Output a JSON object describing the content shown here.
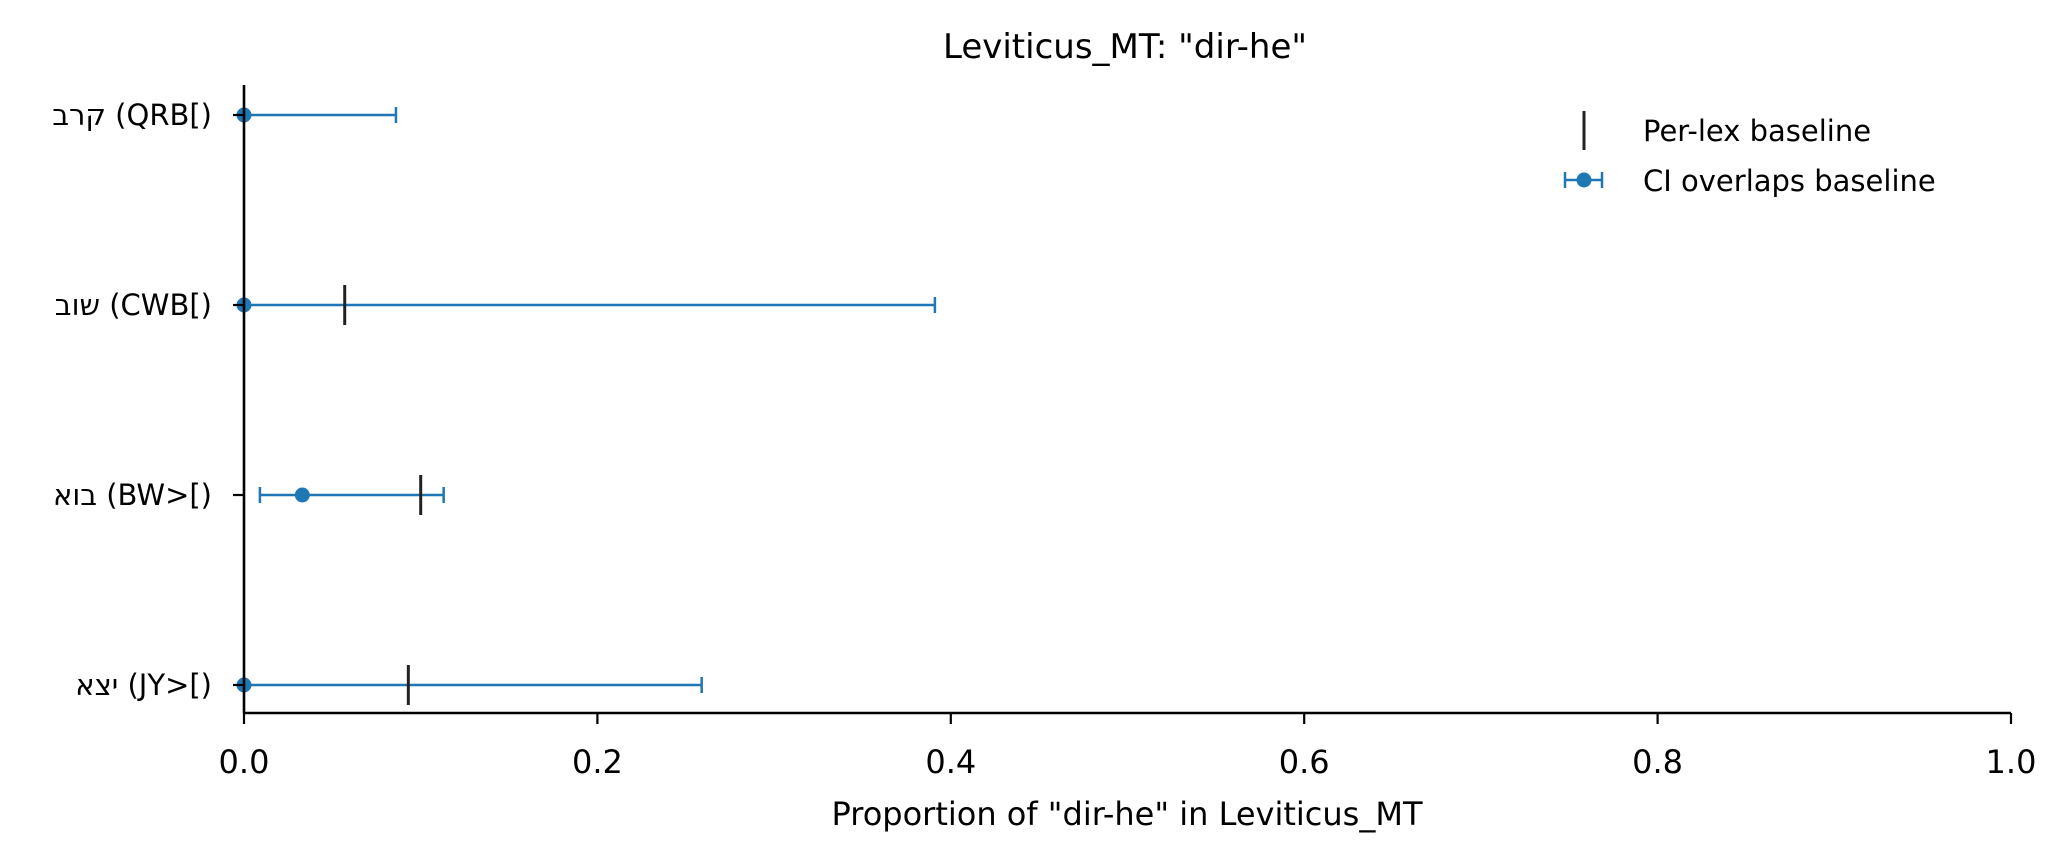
{
  "chart_data": {
    "type": "scatter",
    "title": "Leviticus_MT: \"dir-he\"",
    "xlabel": "Proportion of \"dir-he\" in Leviticus_MT",
    "ylabel": "",
    "xlim": [
      0.0,
      1.0
    ],
    "xticks": [
      "0.0",
      "0.2",
      "0.4",
      "0.6",
      "0.8",
      "1.0"
    ],
    "grid": false,
    "legend_position": "top-right",
    "legend": {
      "baseline_label": "Per-lex baseline",
      "point_label": "CI overlaps baseline"
    },
    "colors": {
      "point": "#1f77b4",
      "baseline": "#222222",
      "axis": "#000000"
    },
    "categories": [
      "קרב (QRB[)",
      "שוב (CWB[)",
      "בוא (BW>[)",
      "יצא (JY>[)"
    ],
    "points": [
      {
        "label": "קרב (QRB[)",
        "estimate": 0.0,
        "ci_low": 0.0,
        "ci_high": 0.086,
        "baseline": null
      },
      {
        "label": "שוב (CWB[)",
        "estimate": 0.0,
        "ci_low": 0.0,
        "ci_high": 0.391,
        "baseline": 0.057
      },
      {
        "label": "בוא (BW>[)",
        "estimate": 0.033,
        "ci_low": 0.009,
        "ci_high": 0.113,
        "baseline": 0.1
      },
      {
        "label": "יצא (JY>[)",
        "estimate": 0.0,
        "ci_low": 0.0,
        "ci_high": 0.259,
        "baseline": 0.093
      }
    ]
  }
}
